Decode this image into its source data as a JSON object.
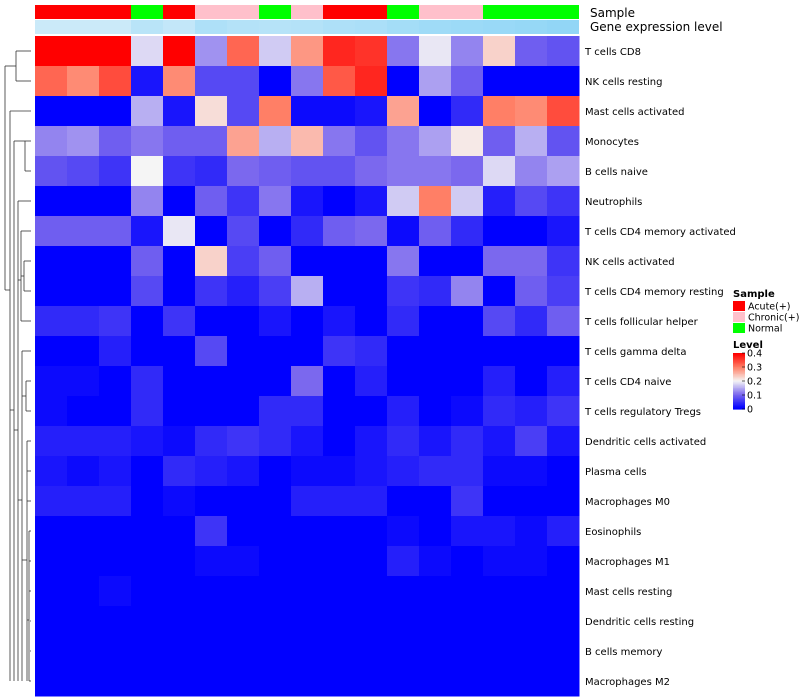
{
  "chart_data": {
    "type": "heatmap",
    "title": "",
    "annotation_labels": {
      "sample": "Sample",
      "gene_expression": "Gene expression level"
    },
    "sample_annotation": [
      "Acute(+)",
      "Acute(+)",
      "Acute(+)",
      "Normal",
      "Acute(+)",
      "Chronic(+)",
      "Chronic(+)",
      "Normal",
      "Chronic(+)",
      "Acute(+)",
      "Acute(+)",
      "Normal",
      "Chronic(+)",
      "Chronic(+)",
      "Normal",
      "Normal",
      "Normal"
    ],
    "gene_expression_annotation": [
      0.72,
      0.72,
      0.72,
      0.55,
      0.65,
      0.45,
      0.5,
      0.52,
      0.5,
      0.45,
      0.42,
      0.35,
      0.3,
      0.28,
      0.25,
      0.22,
      0.18
    ],
    "rows": [
      "T cells CD8",
      "NK cells resting",
      "Mast cells activated",
      "Monocytes",
      "B cells naive",
      "Neutrophils",
      "T cells CD4 memory activated",
      "NK cells activated",
      "T cells CD4 memory resting",
      "T cells follicular helper",
      "T cells gamma delta",
      "T cells CD4 naive",
      "T cells regulatory  Tregs",
      "Dendritic cells activated",
      "Plasma cells",
      "Macrophages M0",
      "Eosinophils",
      "Macrophages M1",
      "Mast cells resting",
      "Dendritic cells resting",
      "B cells memory",
      "Macrophages M2"
    ],
    "values": [
      [
        0.4,
        0.4,
        0.4,
        0.18,
        0.4,
        0.13,
        0.32,
        0.17,
        0.28,
        0.37,
        0.36,
        0.11,
        0.19,
        0.12,
        0.23,
        0.09,
        0.08
      ],
      [
        0.32,
        0.29,
        0.34,
        0.02,
        0.29,
        0.07,
        0.07,
        0.0,
        0.11,
        0.33,
        0.37,
        0.0,
        0.14,
        0.09,
        0.0,
        0.0,
        0.0
      ],
      [
        0.0,
        0.0,
        0.0,
        0.15,
        0.02,
        0.22,
        0.07,
        0.3,
        0.01,
        0.01,
        0.02,
        0.27,
        0.0,
        0.04,
        0.3,
        0.29,
        0.34
      ],
      [
        0.12,
        0.13,
        0.09,
        0.11,
        0.09,
        0.09,
        0.27,
        0.15,
        0.25,
        0.11,
        0.08,
        0.11,
        0.14,
        0.21,
        0.09,
        0.15,
        0.08
      ],
      [
        0.08,
        0.07,
        0.05,
        0.2,
        0.05,
        0.04,
        0.1,
        0.09,
        0.08,
        0.08,
        0.1,
        0.11,
        0.11,
        0.1,
        0.18,
        0.12,
        0.14
      ],
      [
        0.0,
        0.0,
        0.0,
        0.12,
        0.0,
        0.09,
        0.05,
        0.11,
        0.02,
        0.0,
        0.02,
        0.17,
        0.3,
        0.17,
        0.03,
        0.07,
        0.05
      ],
      [
        0.09,
        0.09,
        0.09,
        0.02,
        0.19,
        0.0,
        0.07,
        0.0,
        0.04,
        0.09,
        0.1,
        0.01,
        0.09,
        0.04,
        0.0,
        0.0,
        0.02
      ],
      [
        0.0,
        0.0,
        0.0,
        0.09,
        0.0,
        0.23,
        0.06,
        0.09,
        0.0,
        0.0,
        0.0,
        0.11,
        0.0,
        0.0,
        0.1,
        0.1,
        0.05
      ],
      [
        0.0,
        0.0,
        0.0,
        0.07,
        0.0,
        0.05,
        0.03,
        0.06,
        0.15,
        0.0,
        0.0,
        0.05,
        0.04,
        0.12,
        0.0,
        0.09,
        0.06
      ],
      [
        0.04,
        0.04,
        0.05,
        0.0,
        0.05,
        0.0,
        0.0,
        0.02,
        0.0,
        0.02,
        0.0,
        0.04,
        0.0,
        0.0,
        0.07,
        0.04,
        0.09
      ],
      [
        0.0,
        0.0,
        0.03,
        0.0,
        0.0,
        0.07,
        0.0,
        0.0,
        0.0,
        0.05,
        0.04,
        0.0,
        0.0,
        0.0,
        0.0,
        0.0,
        0.0
      ],
      [
        0.01,
        0.01,
        0.0,
        0.04,
        0.0,
        0.0,
        0.0,
        0.0,
        0.1,
        0.0,
        0.03,
        0.0,
        0.0,
        0.0,
        0.03,
        0.0,
        0.03
      ],
      [
        0.01,
        0.0,
        0.0,
        0.04,
        0.0,
        0.0,
        0.0,
        0.04,
        0.04,
        0.0,
        0.0,
        0.03,
        0.0,
        0.01,
        0.04,
        0.03,
        0.05
      ],
      [
        0.03,
        0.03,
        0.03,
        0.02,
        0.01,
        0.04,
        0.05,
        0.04,
        0.02,
        0.0,
        0.02,
        0.04,
        0.02,
        0.04,
        0.02,
        0.06,
        0.02
      ],
      [
        0.02,
        0.01,
        0.02,
        0.0,
        0.04,
        0.03,
        0.02,
        0.0,
        0.01,
        0.01,
        0.02,
        0.03,
        0.04,
        0.04,
        0.01,
        0.01,
        0.0
      ],
      [
        0.03,
        0.03,
        0.03,
        0.0,
        0.01,
        0.0,
        0.0,
        0.0,
        0.03,
        0.03,
        0.03,
        0.0,
        0.0,
        0.05,
        0.0,
        0.0,
        0.0
      ],
      [
        0.0,
        0.0,
        0.0,
        0.0,
        0.0,
        0.05,
        0.0,
        0.0,
        0.0,
        0.0,
        0.0,
        0.01,
        0.0,
        0.02,
        0.02,
        0.01,
        0.03
      ],
      [
        0.0,
        0.0,
        0.0,
        0.0,
        0.0,
        0.01,
        0.01,
        0.0,
        0.0,
        0.0,
        0.0,
        0.03,
        0.01,
        0.0,
        0.01,
        0.01,
        0.0
      ],
      [
        0.0,
        0.0,
        0.01,
        0.0,
        0.0,
        0.0,
        0.0,
        0.0,
        0.0,
        0.0,
        0.0,
        0.0,
        0.0,
        0.0,
        0.0,
        0.0,
        0.0
      ],
      [
        0.0,
        0.0,
        0.0,
        0.0,
        0.0,
        0.0,
        0.0,
        0.0,
        0.0,
        0.0,
        0.0,
        0.0,
        0.0,
        0.0,
        0.0,
        0.0,
        0.0
      ],
      [
        0.0,
        0.0,
        0.0,
        0.0,
        0.0,
        0.0,
        0.0,
        0.0,
        0.0,
        0.0,
        0.0,
        0.0,
        0.0,
        0.0,
        0.0,
        0.0,
        0.0
      ],
      [
        0.0,
        0.0,
        0.0,
        0.0,
        0.0,
        0.0,
        0.0,
        0.0,
        0.0,
        0.0,
        0.0,
        0.0,
        0.0,
        0.0,
        0.0,
        0.0,
        0.0
      ]
    ],
    "color_scale": {
      "stops": [
        0,
        0.1,
        0.2,
        0.3,
        0.4
      ],
      "colors": [
        "#0000ff",
        "#7b68ee",
        "#f5f5f5",
        "#ff7f66",
        "#ff0000"
      ]
    },
    "legend": {
      "position": "right",
      "sample_title": "Sample",
      "sample_items": [
        {
          "label": "Acute(+)",
          "color": "#ff0000"
        },
        {
          "label": "Chronic(+)",
          "color": "#ffc0cb"
        },
        {
          "label": "Normal",
          "color": "#00ff00"
        }
      ],
      "level_title": "Level",
      "level_ticks": [
        "0.4",
        "0.3",
        "0.2",
        "0.1",
        "0"
      ]
    },
    "gene_expression_colors": {
      "low": "#e8f4fb",
      "high": "#7fd0f5"
    }
  }
}
